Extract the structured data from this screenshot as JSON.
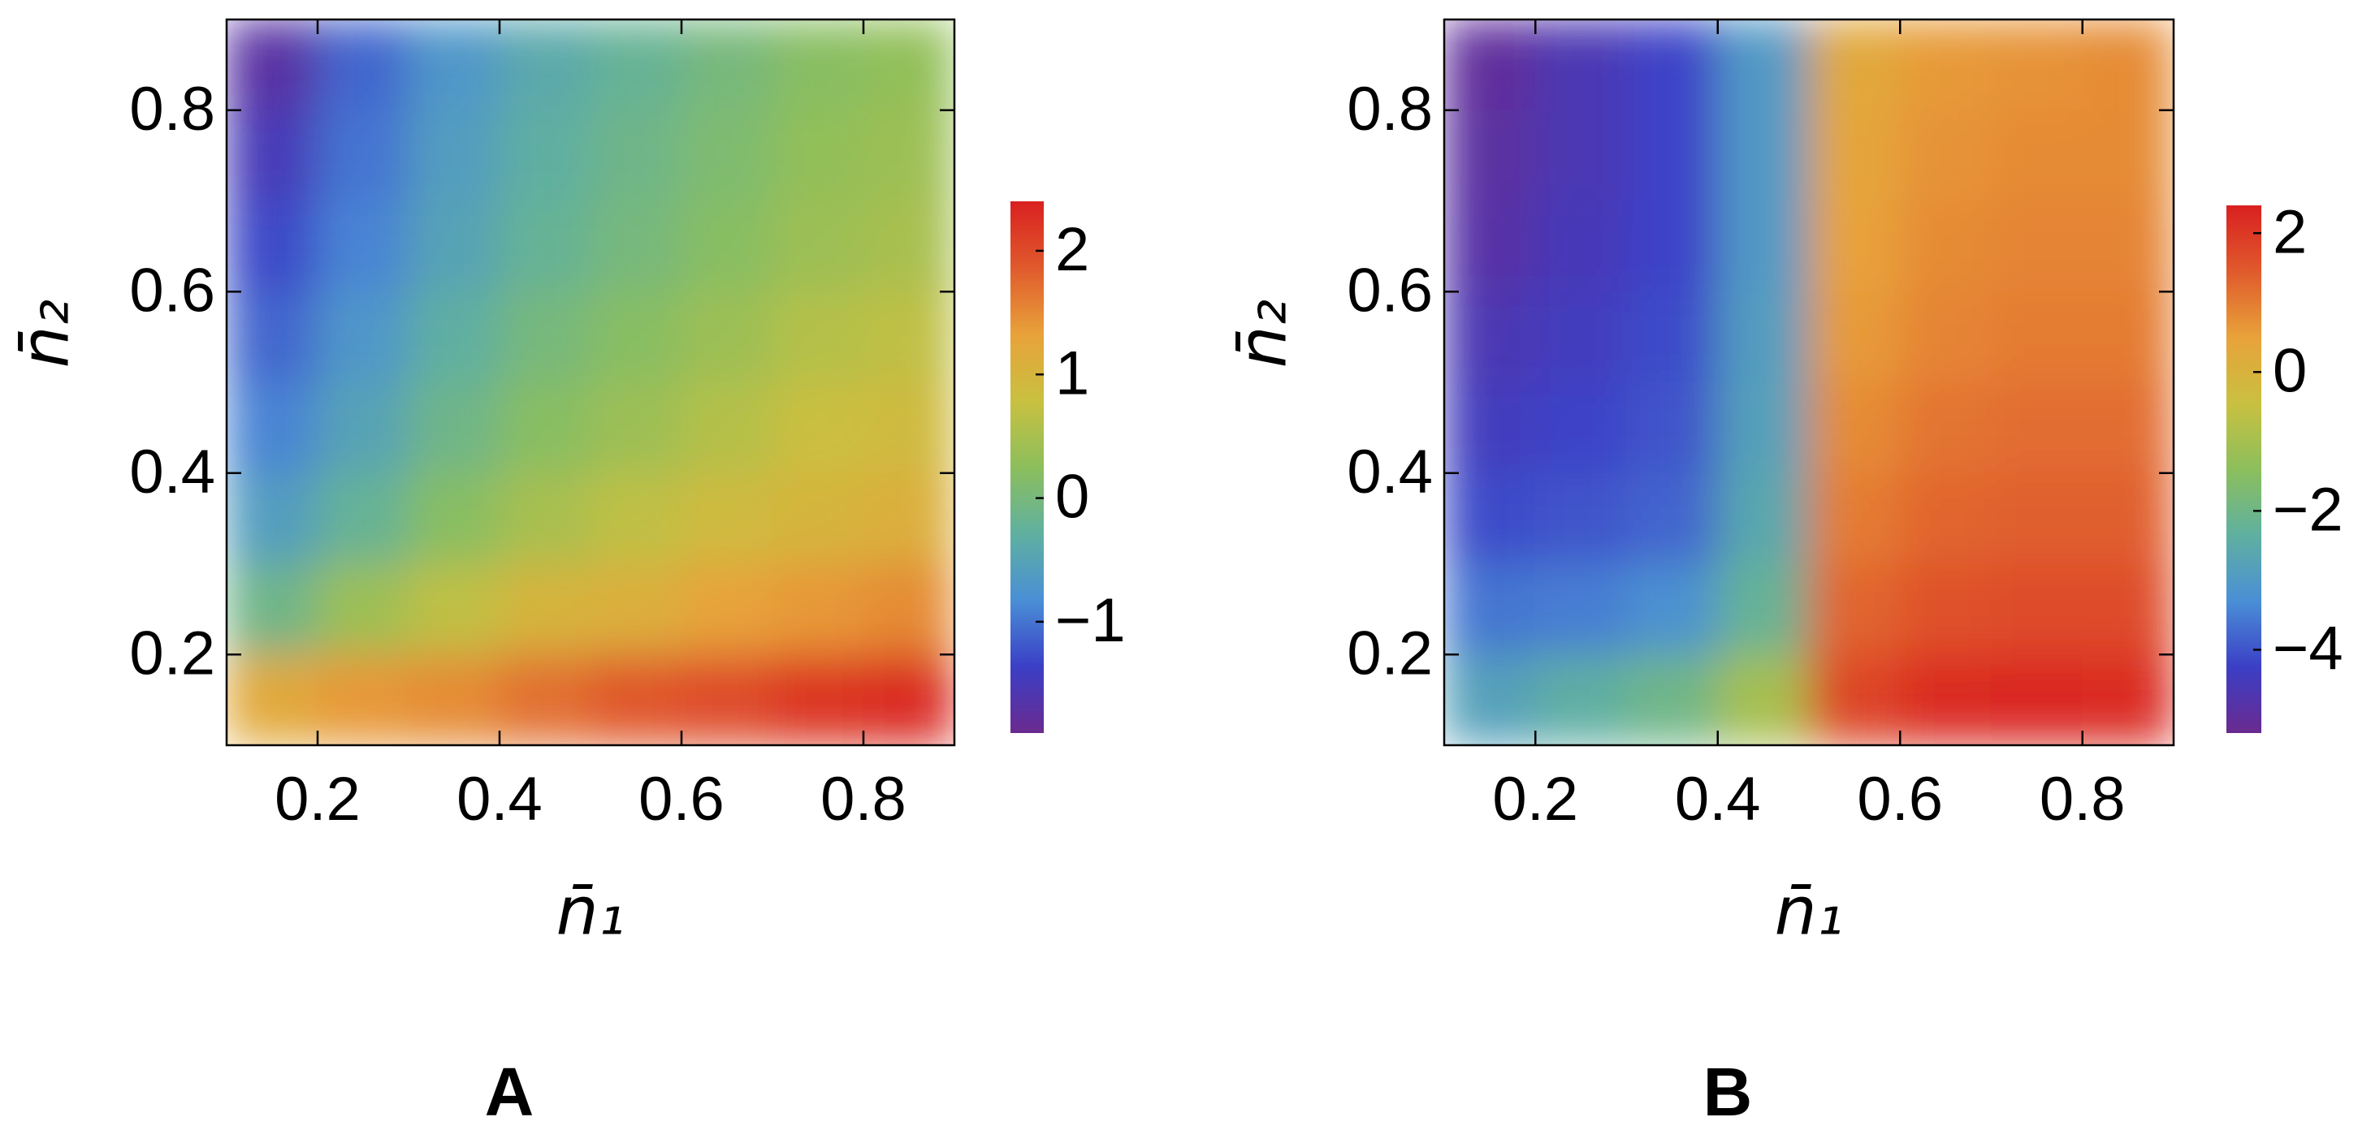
{
  "chart_data": [
    {
      "type": "heatmap",
      "panel": "A",
      "xlabel": "n̄₁",
      "ylabel": "n̄₂",
      "x": [
        0.15,
        0.25,
        0.35,
        0.45,
        0.55,
        0.65,
        0.75,
        0.85
      ],
      "y": [
        0.85,
        0.75,
        0.65,
        0.55,
        0.45,
        0.35,
        0.25,
        0.15
      ],
      "z": [
        [
          -1.7,
          -1.1,
          -0.7,
          -0.4,
          -0.2,
          0,
          0.2,
          0.3
        ],
        [
          -1.5,
          -1.0,
          -0.6,
          -0.3,
          -0.1,
          0.1,
          0.3,
          0.4
        ],
        [
          -1.3,
          -0.9,
          -0.5,
          -0.2,
          0,
          0.2,
          0.4,
          0.5
        ],
        [
          -1.1,
          -0.7,
          -0.3,
          0,
          0.2,
          0.4,
          0.6,
          0.7
        ],
        [
          -0.9,
          -0.5,
          -0.1,
          0.2,
          0.4,
          0.6,
          0.8,
          0.9
        ],
        [
          -0.6,
          -0.2,
          0.2,
          0.5,
          0.7,
          0.9,
          1.0,
          1.1
        ],
        [
          -0.1,
          0.4,
          0.7,
          1.0,
          1.1,
          1.3,
          1.4,
          1.5
        ],
        [
          1.2,
          1.4,
          1.5,
          1.7,
          1.9,
          2.0,
          2.2,
          2.3
        ]
      ],
      "xlim": [
        0.1,
        0.9
      ],
      "ylim": [
        0.1,
        0.9
      ],
      "xticks": [
        0.2,
        0.4,
        0.6,
        0.8
      ],
      "yticks": [
        0.2,
        0.4,
        0.6,
        0.8
      ],
      "zlim": [
        -1.9,
        2.4
      ],
      "zticks": [
        {
          "value": -1,
          "label": "−1"
        },
        0,
        1,
        2
      ],
      "colormap": [
        "#6a2a8f",
        "#3b3fc6",
        "#4a8fd6",
        "#5fb0a0",
        "#8cbf5c",
        "#c9c040",
        "#e8a23a",
        "#e05a2c",
        "#d92020"
      ]
    },
    {
      "type": "heatmap",
      "panel": "B",
      "xlabel": "n̄₁",
      "ylabel": "n̄₂",
      "x": [
        0.15,
        0.25,
        0.35,
        0.45,
        0.55,
        0.65,
        0.75,
        0.85
      ],
      "y": [
        0.85,
        0.75,
        0.65,
        0.55,
        0.45,
        0.35,
        0.25,
        0.15
      ],
      "z": [
        [
          -5.0,
          -4.6,
          -4.2,
          -3.0,
          0.3,
          0.6,
          0.7,
          0.8
        ],
        [
          -4.9,
          -4.6,
          -4.2,
          -3.0,
          0.4,
          0.7,
          0.8,
          0.8
        ],
        [
          -4.8,
          -4.5,
          -4.2,
          -3.0,
          0.5,
          0.8,
          0.9,
          0.9
        ],
        [
          -4.6,
          -4.4,
          -4.1,
          -2.9,
          0.6,
          0.9,
          1.0,
          1.0
        ],
        [
          -4.4,
          -4.2,
          -4.0,
          -2.8,
          0.8,
          1.1,
          1.2,
          1.2
        ],
        [
          -4.1,
          -4.0,
          -3.8,
          -2.6,
          1.0,
          1.3,
          1.4,
          1.4
        ],
        [
          -3.6,
          -3.5,
          -3.2,
          -2.2,
          1.3,
          1.6,
          1.7,
          1.7
        ],
        [
          -2.8,
          -2.4,
          -2.0,
          -1.0,
          1.8,
          2.2,
          2.3,
          2.2
        ]
      ],
      "xlim": [
        0.1,
        0.9
      ],
      "ylim": [
        0.1,
        0.9
      ],
      "xticks": [
        0.2,
        0.4,
        0.6,
        0.8
      ],
      "yticks": [
        0.2,
        0.4,
        0.6,
        0.8
      ],
      "zlim": [
        -5.2,
        2.4
      ],
      "zticks": [
        {
          "value": -4,
          "label": "−4"
        },
        {
          "value": -2,
          "label": "−2"
        },
        0,
        2
      ],
      "colormap": [
        "#6a2a8f",
        "#3b3fc6",
        "#4a8fd6",
        "#5fb0a0",
        "#8cbf5c",
        "#c9c040",
        "#e8a23a",
        "#e05a2c",
        "#d92020"
      ]
    }
  ]
}
